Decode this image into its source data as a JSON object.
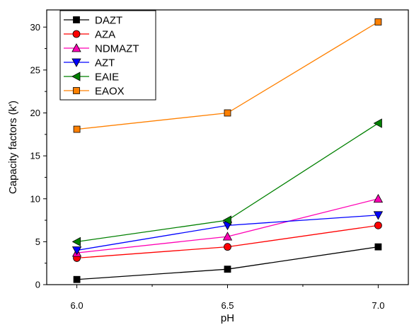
{
  "chart_data": {
    "type": "line",
    "xlabel": "pH",
    "ylabel": "Capacity factors (k')",
    "x": [
      6.0,
      6.5,
      7.0
    ],
    "x_tick_labels": [
      "6.0",
      "6.5",
      "7.0"
    ],
    "xlim": [
      5.9,
      7.1
    ],
    "ylim": [
      0,
      32
    ],
    "y_ticks": [
      0,
      5,
      10,
      15,
      20,
      25,
      30
    ],
    "grid": false,
    "legend_position": "top-left",
    "series": [
      {
        "name": "DAZT",
        "values": [
          0.6,
          1.8,
          4.4
        ],
        "color": "#000000",
        "marker": "square"
      },
      {
        "name": "AZA",
        "values": [
          3.1,
          4.4,
          6.9
        ],
        "color": "#ff0000",
        "marker": "circle"
      },
      {
        "name": "NDMAZT",
        "values": [
          3.7,
          5.6,
          10.0
        ],
        "color": "#ff00b4",
        "marker": "triangle-up"
      },
      {
        "name": "AZT",
        "values": [
          4.0,
          6.9,
          8.1
        ],
        "color": "#0000ff",
        "marker": "triangle-down"
      },
      {
        "name": "EAIE",
        "values": [
          5.0,
          7.5,
          18.8
        ],
        "color": "#008000",
        "marker": "triangle-left"
      },
      {
        "name": "EAOX",
        "values": [
          18.1,
          20.0,
          30.6
        ],
        "color": "#ff8000",
        "marker": "square"
      }
    ]
  }
}
